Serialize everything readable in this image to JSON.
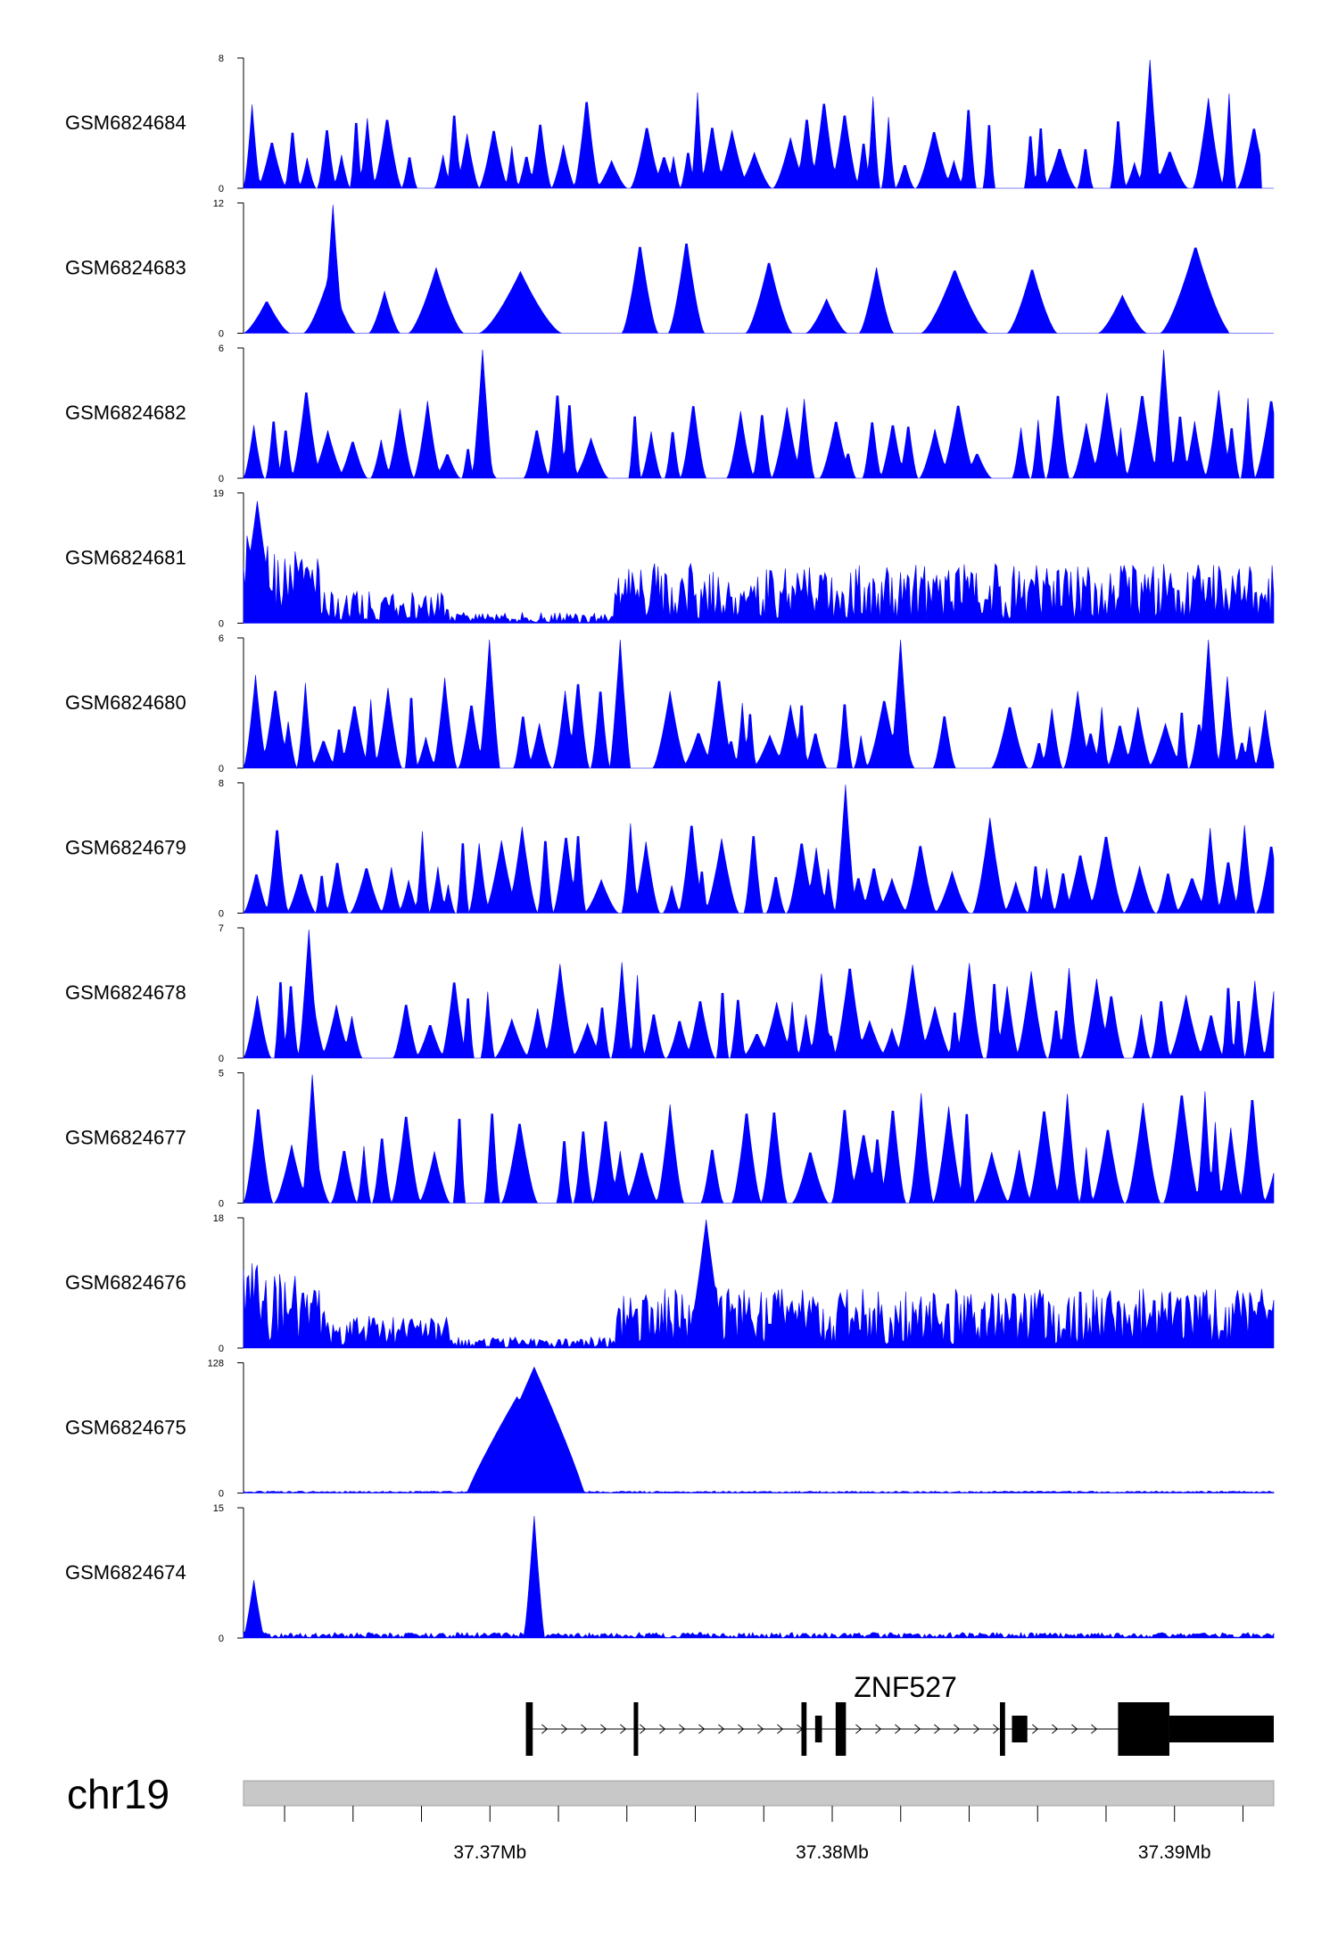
{
  "colors": {
    "track_fill": "#0000ff",
    "axis": "#000000",
    "ideogram": "#c8c8c8",
    "gene": "#000000"
  },
  "chart_data": {
    "type": "area",
    "title": "",
    "chromosome": "chr19",
    "x_range_mb": [
      37.3628,
      37.3929
    ],
    "x_ticks": [
      37.364,
      37.366,
      37.368,
      37.37,
      37.372,
      37.374,
      37.376,
      37.378,
      37.38,
      37.382,
      37.384,
      37.386,
      37.388,
      37.39,
      37.392
    ],
    "x_tick_labels": [
      {
        "value": 37.37,
        "label": "37.37Mb"
      },
      {
        "value": 37.38,
        "label": "37.38Mb"
      },
      {
        "value": 37.39,
        "label": "37.39Mb"
      }
    ],
    "series": [
      {
        "name": "GSM6824684",
        "ymin": "0",
        "ymax": "8",
        "pattern": "sparse",
        "peaks": [
          [
            37.3893,
            1.0
          ]
        ]
      },
      {
        "name": "GSM6824683",
        "ymin": "0",
        "ymax": "12",
        "pattern": "gappy",
        "peaks": [
          [
            37.3654,
            1.0
          ]
        ]
      },
      {
        "name": "GSM6824682",
        "ymin": "0",
        "ymax": "6",
        "pattern": "sparse",
        "peaks": [
          [
            37.3698,
            1.0
          ],
          [
            37.3897,
            1.0
          ]
        ]
      },
      {
        "name": "GSM6824681",
        "ymin": "0",
        "ymax": "19",
        "pattern": "broad",
        "peaks": [
          [
            37.3632,
            0.95
          ]
        ]
      },
      {
        "name": "GSM6824680",
        "ymin": "0",
        "ymax": "6",
        "pattern": "sparse",
        "peaks": [
          [
            37.37,
            1.0
          ],
          [
            37.3738,
            1.0
          ],
          [
            37.382,
            1.0
          ],
          [
            37.391,
            1.0
          ]
        ]
      },
      {
        "name": "GSM6824679",
        "ymin": "0",
        "ymax": "8",
        "pattern": "sparse",
        "peaks": [
          [
            37.3804,
            1.0
          ]
        ]
      },
      {
        "name": "GSM6824678",
        "ymin": "0",
        "ymax": "7",
        "pattern": "sparse",
        "peaks": [
          [
            37.3647,
            1.0
          ]
        ]
      },
      {
        "name": "GSM6824677",
        "ymin": "0",
        "ymax": "5",
        "pattern": "dense",
        "peaks": [
          [
            37.3648,
            1.0
          ]
        ]
      },
      {
        "name": "GSM6824676",
        "ymin": "0",
        "ymax": "18",
        "pattern": "broad",
        "peaks": [
          [
            37.3763,
            1.0
          ]
        ]
      },
      {
        "name": "GSM6824675",
        "ymin": "0",
        "ymax": "128",
        "pattern": "single",
        "peaks": [
          [
            37.3708,
            0.75
          ],
          [
            37.3713,
            0.98
          ]
        ]
      },
      {
        "name": "GSM6824674",
        "ymin": "0",
        "ymax": "15",
        "pattern": "lowpeak",
        "peaks": [
          [
            37.3713,
            0.95
          ],
          [
            37.3631,
            0.45
          ]
        ]
      }
    ],
    "gene": {
      "name": "ZNF527",
      "strand": "+",
      "start": 37.37115,
      "end": 37.3929,
      "exons": [
        {
          "start": 37.37105,
          "end": 37.37125,
          "height": "tall"
        },
        {
          "start": 37.3742,
          "end": 37.37428,
          "height": "tall"
        },
        {
          "start": 37.3791,
          "end": 37.37925,
          "height": "tall"
        },
        {
          "start": 37.3795,
          "end": 37.3797,
          "height": "mid"
        },
        {
          "start": 37.3801,
          "end": 37.3804,
          "height": "tall"
        },
        {
          "start": 37.3849,
          "end": 37.38505,
          "height": "tall"
        },
        {
          "start": 37.38525,
          "end": 37.3857,
          "height": "mid"
        },
        {
          "start": 37.38835,
          "end": 37.38985,
          "height": "tall"
        },
        {
          "start": 37.38985,
          "end": 37.3929,
          "height": "mid"
        }
      ]
    }
  }
}
